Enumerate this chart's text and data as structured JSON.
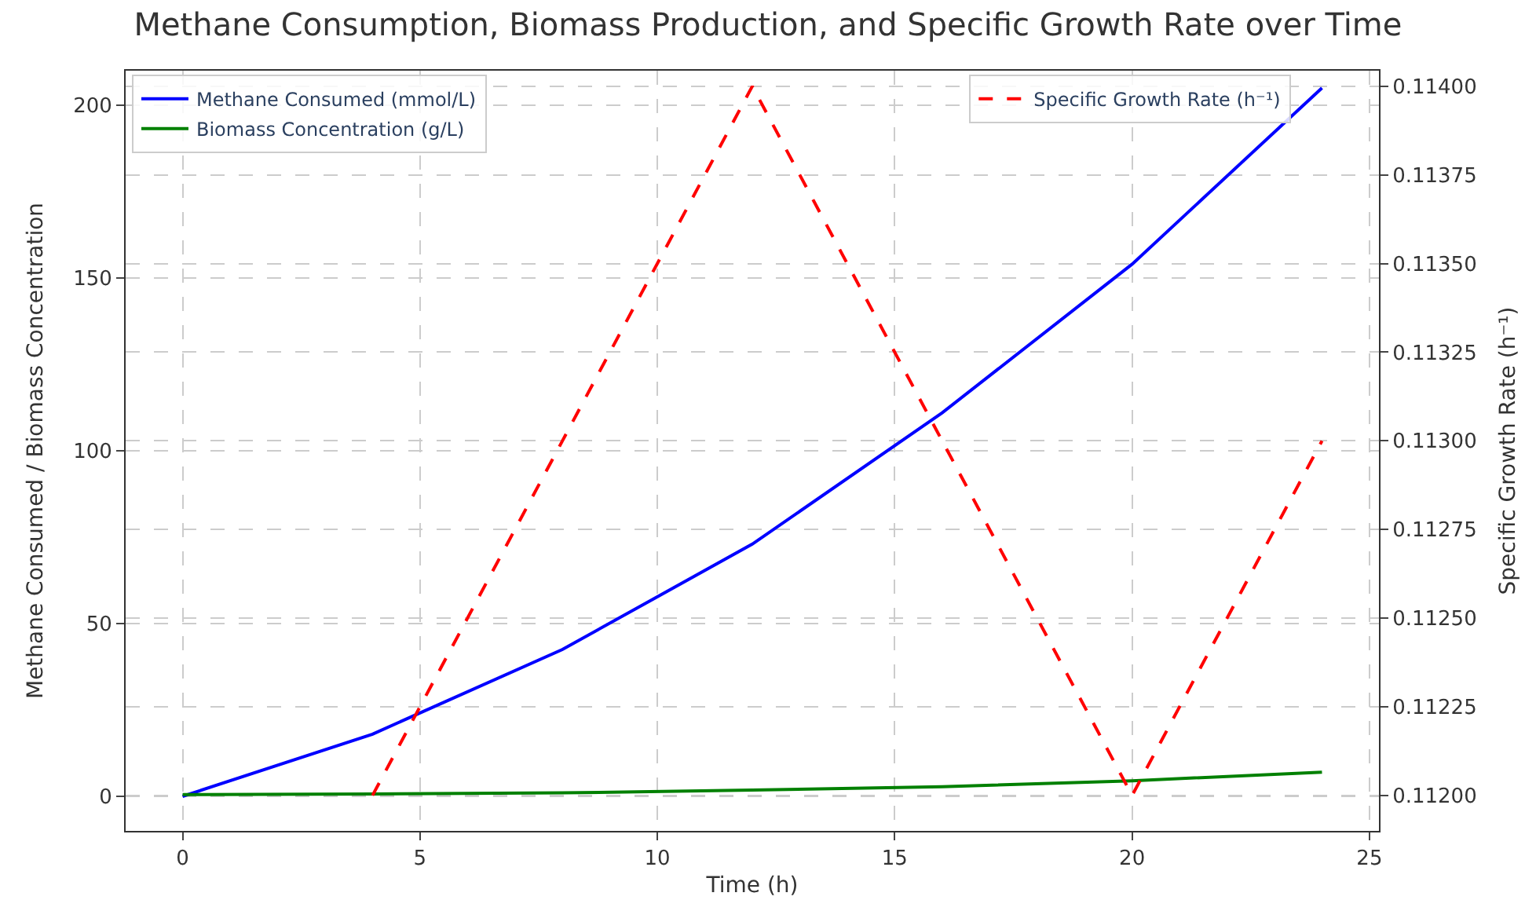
{
  "chart_data": {
    "type": "line",
    "title": "Methane Consumption, Biomass Production, and Specific Growth Rate over Time",
    "xlabel": "Time (h)",
    "ylabel": "Methane Consumed / Biomass Concentration",
    "y2label": "Specific Growth Rate (h⁻¹)",
    "x": [
      0,
      4,
      8,
      12,
      16,
      20,
      24
    ],
    "series": [
      {
        "name": "Methane Consumed (mmol/L)",
        "color": "#0000ff",
        "values": [
          0,
          18,
          42.5,
          73,
          111,
          154,
          205
        ],
        "line_style": "solid"
      },
      {
        "name": "Biomass Concentration (g/L)",
        "color": "#008000",
        "values": [
          0.5,
          0.7,
          1.0,
          1.8,
          2.8,
          4.5,
          7
        ],
        "line_style": "solid"
      },
      {
        "name": "Specific Growth Rate (h⁻¹)",
        "color": "#ff0000",
        "values": [
          null,
          0.112,
          0.113,
          0.114,
          0.113,
          0.112,
          0.113
        ],
        "line_style": "dashed",
        "axis": "y2"
      }
    ],
    "xlim": [
      -1.2,
      25.2
    ],
    "xticks": [
      0,
      5,
      10,
      15,
      20,
      25
    ],
    "ylim": [
      -10,
      210
    ],
    "yticks": [
      0,
      50,
      100,
      150,
      200
    ],
    "y2lim": [
      0.1119,
      0.114044
    ],
    "y2ticks": [
      {
        "value": 0.112,
        "label": "0.11200"
      },
      {
        "value": 0.11225,
        "label": "0.11225"
      },
      {
        "value": 0.1125,
        "label": "0.11250"
      },
      {
        "value": 0.11275,
        "label": "0.11275"
      },
      {
        "value": 0.113,
        "label": "0.11300"
      },
      {
        "value": 0.11325,
        "label": "0.11325"
      },
      {
        "value": 0.1135,
        "label": "0.11350"
      },
      {
        "value": 0.11375,
        "label": "0.11375"
      },
      {
        "value": 0.114,
        "label": "0.11400"
      }
    ],
    "grid": true,
    "legend": "top left",
    "marker": "none"
  }
}
